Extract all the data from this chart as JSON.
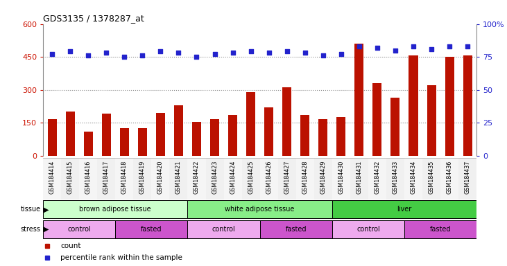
{
  "title": "GDS3135 / 1378287_at",
  "samples": [
    "GSM184414",
    "GSM184415",
    "GSM184416",
    "GSM184417",
    "GSM184418",
    "GSM184419",
    "GSM184420",
    "GSM184421",
    "GSM184422",
    "GSM184423",
    "GSM184424",
    "GSM184425",
    "GSM184426",
    "GSM184427",
    "GSM184428",
    "GSM184429",
    "GSM184430",
    "GSM184431",
    "GSM184432",
    "GSM184433",
    "GSM184434",
    "GSM184435",
    "GSM184436",
    "GSM184437"
  ],
  "counts": [
    165,
    200,
    110,
    190,
    125,
    125,
    195,
    230,
    155,
    165,
    185,
    290,
    220,
    310,
    185,
    165,
    175,
    510,
    330,
    265,
    455,
    320,
    450,
    455
  ],
  "percentile_vals": [
    77,
    79,
    76,
    78,
    75,
    76,
    79,
    78,
    75,
    77,
    78,
    79,
    78,
    79,
    78,
    76,
    77,
    83,
    82,
    80,
    83,
    81,
    83,
    83
  ],
  "ylim_left": [
    0,
    600
  ],
  "ylim_right": [
    0,
    100
  ],
  "yticks_left": [
    0,
    150,
    300,
    450,
    600
  ],
  "yticks_right": [
    0,
    25,
    50,
    75,
    100
  ],
  "bar_color": "#bb1100",
  "dot_color": "#2222cc",
  "tissue_groups": [
    {
      "label": "brown adipose tissue",
      "start": 0,
      "end": 8,
      "color": "#ccffcc"
    },
    {
      "label": "white adipose tissue",
      "start": 8,
      "end": 16,
      "color": "#88ee88"
    },
    {
      "label": "liver",
      "start": 16,
      "end": 24,
      "color": "#44cc44"
    }
  ],
  "stress_groups": [
    {
      "label": "control",
      "start": 0,
      "end": 4,
      "color": "#eeaaee"
    },
    {
      "label": "fasted",
      "start": 4,
      "end": 8,
      "color": "#cc55cc"
    },
    {
      "label": "control",
      "start": 8,
      "end": 12,
      "color": "#eeaaee"
    },
    {
      "label": "fasted",
      "start": 12,
      "end": 16,
      "color": "#cc55cc"
    },
    {
      "label": "control",
      "start": 16,
      "end": 20,
      "color": "#eeaaee"
    },
    {
      "label": "fasted",
      "start": 20,
      "end": 24,
      "color": "#cc55cc"
    }
  ],
  "tissue_label": "tissue",
  "stress_label": "stress",
  "bg_color": "#ffffff",
  "grid_color": "#888888",
  "tick_color_left": "#cc1100",
  "tick_color_right": "#2222cc",
  "xlabel_fontsize": 5.5,
  "bar_width": 0.5
}
